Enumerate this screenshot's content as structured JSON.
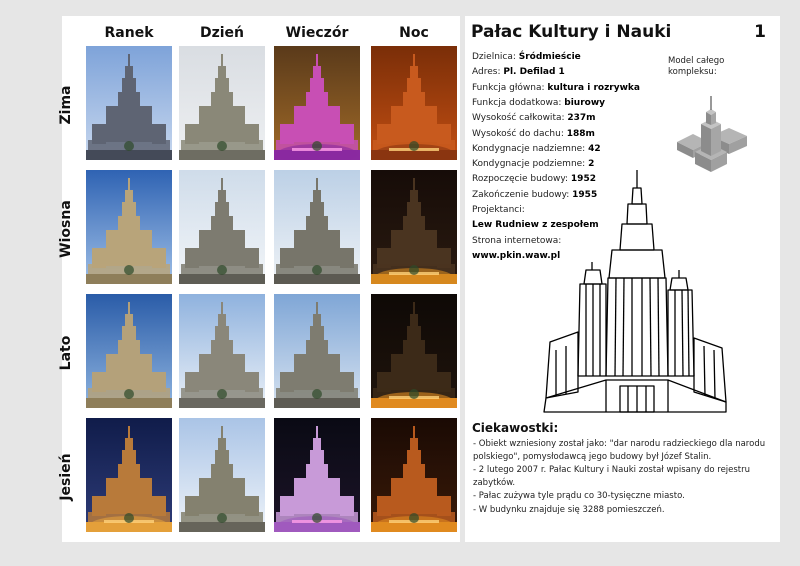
{
  "grid": {
    "columns": [
      "Ranek",
      "Dzień",
      "Wieczór",
      "Noc"
    ],
    "rows": [
      "Zima",
      "Wiosna",
      "Lato",
      "Jesień"
    ],
    "photos": [
      [
        {
          "sky1": "#7ea3d9",
          "sky2": "#c7d7ee",
          "bld": "#5e6473",
          "glow": "#444a58",
          "light": "none"
        },
        {
          "sky1": "#d9dde2",
          "sky2": "#eef0f2",
          "bld": "#8a8878",
          "glow": "#6e6d62",
          "light": "none"
        },
        {
          "sky1": "#5a3a1a",
          "sky2": "#a06a28",
          "bld": "#c84fb4",
          "glow": "#8a2aa0",
          "light": "pink"
        },
        {
          "sky1": "#7a2e08",
          "sky2": "#c24e12",
          "bld": "#c85a1e",
          "glow": "#8a3610",
          "light": "orange"
        }
      ],
      [
        {
          "sky1": "#2f63b3",
          "sky2": "#9fbfe6",
          "bld": "#b8a47a",
          "glow": "#8e7e5a",
          "light": "none"
        },
        {
          "sky1": "#cfdcea",
          "sky2": "#f2f5f8",
          "bld": "#7d7b70",
          "glow": "#5e5d55",
          "light": "none"
        },
        {
          "sky1": "#bcd0e6",
          "sky2": "#eef2f6",
          "bld": "#77756a",
          "glow": "#5c5a52",
          "light": "none"
        },
        {
          "sky1": "#160c08",
          "sky2": "#2a1a10",
          "bld": "#4a3420",
          "glow": "#d6881e",
          "light": "orange"
        }
      ],
      [
        {
          "sky1": "#2a5ca8",
          "sky2": "#8fb4df",
          "bld": "#b4a17a",
          "glow": "#8e7e5a",
          "light": "none"
        },
        {
          "sky1": "#8fb2de",
          "sky2": "#eaf0f7",
          "bld": "#8a877a",
          "glow": "#6a6860",
          "light": "none"
        },
        {
          "sky1": "#7fa6d6",
          "sky2": "#d6e2f0",
          "bld": "#7e7c70",
          "glow": "#5e5c54",
          "light": "none"
        },
        {
          "sky1": "#0e0906",
          "sky2": "#20140c",
          "bld": "#3c2a18",
          "glow": "#e08a20",
          "light": "orange"
        }
      ],
      [
        {
          "sky1": "#101c4a",
          "sky2": "#2e3c78",
          "bld": "#b87a3a",
          "glow": "#e4a03a",
          "light": "orange"
        },
        {
          "sky1": "#aac4e6",
          "sky2": "#eef3f9",
          "bld": "#84816f",
          "glow": "#66645a",
          "light": "none"
        },
        {
          "sky1": "#0a0a14",
          "sky2": "#1c1428",
          "bld": "#c89ad8",
          "glow": "#a05abe",
          "light": "pink"
        },
        {
          "sky1": "#1a0a04",
          "sky2": "#3a1a08",
          "bld": "#b85a1e",
          "glow": "#e08a20",
          "light": "orange"
        }
      ]
    ]
  },
  "title": "Pałac Kultury i Nauki",
  "number": "1",
  "info": [
    {
      "label": "Dzielnica: ",
      "value": "Śródmieście"
    },
    {
      "label": "Adres: ",
      "value": "Pl. Defilad 1"
    },
    {
      "label": "Funkcja główna: ",
      "value": "kultura i rozrywka"
    },
    {
      "label": "Funkcja dodatkowa: ",
      "value": "biurowy"
    },
    {
      "label": "Wysokość całkowita: ",
      "value": "237m"
    },
    {
      "label": "Wysokość do dachu: ",
      "value": "188m"
    },
    {
      "label": "Kondygnacje nadziemne: ",
      "value": "42"
    },
    {
      "label": "Kondygnacje podziemne: ",
      "value": "2"
    },
    {
      "label": "Rozpoczęcie budowy: ",
      "value": "1952"
    },
    {
      "label": "Zakończenie budowy: ",
      "value": "1955"
    },
    {
      "label": "Projektanci:",
      "value": ""
    },
    {
      "label": "",
      "value": "Lew Rudniew z zespołem"
    },
    {
      "label": "Strona internetowa:",
      "value": ""
    },
    {
      "label": "",
      "value": "www.pkin.waw.pl"
    }
  ],
  "model_caption": "Model całego kompleksu:",
  "facts_title": "Ciekawostki:",
  "facts": [
    "- Obiekt wzniesiony został jako: \"dar narodu radzieckiego dla narodu polskiego\", pomysłodawcą jego budowy był Józef Stalin.",
    "- 2 lutego 2007 r. Pałac Kultury i Nauki został wpisany do rejestru zabytków.",
    "- Pałac zużywa tyle prądu co 30-tysięczne miasto.",
    "- W budynku znajduje się 3288 pomieszczeń."
  ]
}
